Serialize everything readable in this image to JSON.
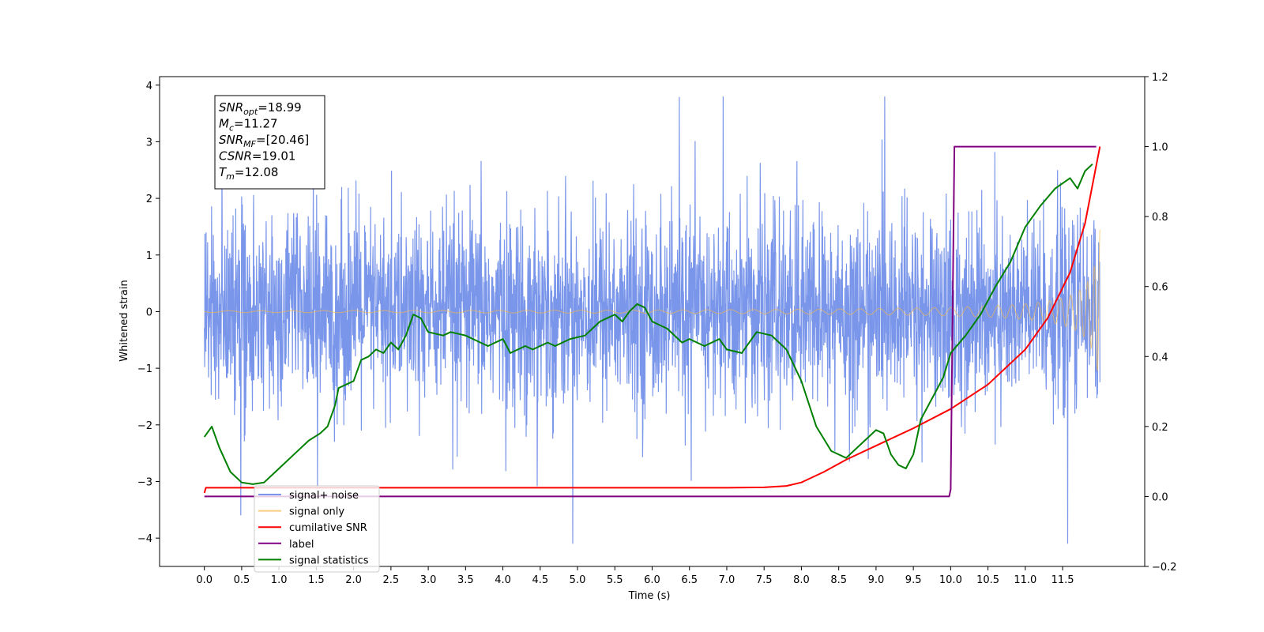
{
  "chart_data": {
    "type": "line",
    "xlabel": "Time (s)",
    "ylabel": "Whitened strain",
    "y2label": "",
    "xlim": [
      -0.6,
      12.6
    ],
    "ylim": [
      -4.5,
      4.15
    ],
    "y2lim": [
      -0.2,
      1.2
    ],
    "xticks": [
      "0.0",
      "0.5",
      "1.0",
      "1.5",
      "2.0",
      "2.5",
      "3.0",
      "3.5",
      "4.0",
      "4.5",
      "5.0",
      "5.5",
      "6.0",
      "6.5",
      "7.0",
      "7.5",
      "8.0",
      "8.5",
      "9.0",
      "9.5",
      "10.0",
      "10.5",
      "11.0",
      "11.5"
    ],
    "yticks": [
      "−4",
      "−3",
      "−2",
      "−1",
      "0",
      "1",
      "2",
      "3",
      "4"
    ],
    "y2ticks": [
      "−0.2",
      "0.0",
      "0.2",
      "0.4",
      "0.6",
      "0.8",
      "1.0",
      "1.2"
    ],
    "grid": false,
    "legend_position": "lower-left",
    "info_box": {
      "lines": [
        {
          "sym": "SNR",
          "sub": "opt",
          "val": "=18.99"
        },
        {
          "sym": "M",
          "sub": "c",
          "val": "=11.27"
        },
        {
          "sym": "SNR",
          "sub": "MF",
          "val": "=[20.46]"
        },
        {
          "sym": "CSNR",
          "sub": "",
          "val": "=19.01"
        },
        {
          "sym": "T",
          "sub": "m",
          "val": "=12.08"
        }
      ]
    },
    "series": [
      {
        "name": "signal+ noise",
        "color": "#4169e1",
        "axis": "left",
        "kind": "noise",
        "x_start": 0.0,
        "x_end": 12.0,
        "spread": 1.0,
        "peak_max": 3.8,
        "peak_min": -4.1
      },
      {
        "name": "signal only",
        "color": "#f5b94a",
        "axis": "left",
        "kind": "chirp",
        "x_start": 0.0,
        "x_end": 12.0,
        "t_merge": 12.08,
        "final_amplitude": 1.45
      },
      {
        "name": "cumilative SNR",
        "color": "#ff0000",
        "axis": "right",
        "x": [
          0.0,
          0.02,
          7.0,
          7.5,
          7.8,
          8.0,
          8.3,
          8.6,
          9.0,
          9.5,
          10.0,
          10.5,
          11.0,
          11.3,
          11.6,
          11.8,
          12.0
        ],
        "y": [
          0.01,
          0.025,
          0.025,
          0.026,
          0.03,
          0.04,
          0.07,
          0.105,
          0.145,
          0.195,
          0.25,
          0.32,
          0.42,
          0.51,
          0.64,
          0.78,
          1.0
        ]
      },
      {
        "name": "label",
        "color": "#800080",
        "axis": "right",
        "x": [
          0.0,
          9.98,
          10.0,
          10.05,
          11.95
        ],
        "y": [
          0.0,
          0.0,
          0.02,
          1.0,
          1.0
        ]
      },
      {
        "name": "signal statistics",
        "color": "#008000",
        "axis": "right",
        "x": [
          0.0,
          0.1,
          0.2,
          0.35,
          0.5,
          0.65,
          0.8,
          0.9,
          1.0,
          1.2,
          1.4,
          1.55,
          1.65,
          1.75,
          1.8,
          1.9,
          2.0,
          2.1,
          2.2,
          2.3,
          2.4,
          2.5,
          2.6,
          2.7,
          2.8,
          2.9,
          3.0,
          3.2,
          3.3,
          3.5,
          3.7,
          3.8,
          4.0,
          4.1,
          4.3,
          4.4,
          4.6,
          4.7,
          4.9,
          5.1,
          5.3,
          5.5,
          5.6,
          5.7,
          5.8,
          5.9,
          6.0,
          6.2,
          6.4,
          6.5,
          6.7,
          6.9,
          7.0,
          7.2,
          7.4,
          7.6,
          7.8,
          8.0,
          8.2,
          8.4,
          8.6,
          8.8,
          8.9,
          9.0,
          9.1,
          9.2,
          9.3,
          9.4,
          9.5,
          9.6,
          9.8,
          9.9,
          10.0,
          10.2,
          10.4,
          10.6,
          10.8,
          11.0,
          11.2,
          11.4,
          11.6,
          11.7,
          11.8,
          11.9
        ],
        "y": [
          0.17,
          0.2,
          0.14,
          0.07,
          0.04,
          0.035,
          0.04,
          0.06,
          0.08,
          0.12,
          0.16,
          0.18,
          0.2,
          0.26,
          0.31,
          0.32,
          0.33,
          0.39,
          0.4,
          0.42,
          0.41,
          0.44,
          0.42,
          0.46,
          0.52,
          0.51,
          0.47,
          0.46,
          0.47,
          0.46,
          0.44,
          0.43,
          0.45,
          0.41,
          0.43,
          0.42,
          0.44,
          0.43,
          0.45,
          0.46,
          0.5,
          0.52,
          0.5,
          0.53,
          0.55,
          0.54,
          0.5,
          0.48,
          0.44,
          0.45,
          0.43,
          0.45,
          0.42,
          0.41,
          0.47,
          0.46,
          0.42,
          0.33,
          0.2,
          0.13,
          0.11,
          0.15,
          0.17,
          0.19,
          0.18,
          0.12,
          0.09,
          0.08,
          0.12,
          0.22,
          0.3,
          0.34,
          0.41,
          0.46,
          0.52,
          0.6,
          0.67,
          0.77,
          0.83,
          0.88,
          0.91,
          0.88,
          0.93,
          0.95
        ]
      }
    ]
  }
}
